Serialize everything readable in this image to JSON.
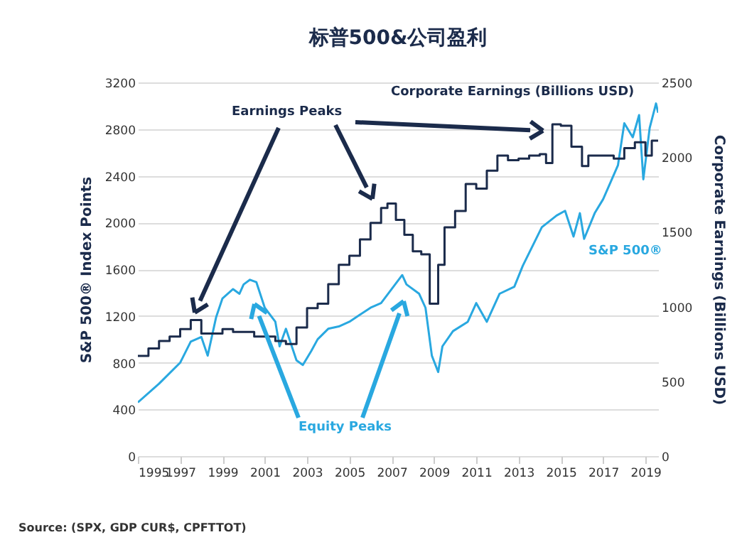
{
  "chart_data": {
    "type": "line",
    "title": "标普500&公司盈利",
    "ylabel": "S&P 500® Index Points",
    "y2label": "Corporate Earnings (Billions USD)",
    "xlim": [
      1995,
      2019.6
    ],
    "xticks": [
      1995,
      1997,
      1999,
      2001,
      2003,
      2005,
      2007,
      2009,
      2011,
      2013,
      2015,
      2017,
      2019
    ],
    "ylim": [
      0,
      3200
    ],
    "yticks": [
      0,
      400,
      800,
      1200,
      1600,
      2000,
      2400,
      2800,
      3200
    ],
    "y2lim": [
      0,
      2500
    ],
    "y2ticks": [
      0,
      500,
      1000,
      1500,
      2000,
      2500
    ],
    "grid": "y",
    "legend": false,
    "series": [
      {
        "name": "S&P 500®",
        "color": "#29a8e0",
        "x": [
          1995,
          1996,
          1997,
          1997.5,
          1998,
          1998.3,
          1998.7,
          1999,
          1999.5,
          1999.8,
          2000,
          2000.3,
          2000.6,
          2001,
          2001.5,
          2001.7,
          2002,
          2002.5,
          2002.8,
          2003.2,
          2003.5,
          2004,
          2004.5,
          2005,
          2005.5,
          2006,
          2006.5,
          2007,
          2007.5,
          2007.7,
          2008.3,
          2008.6,
          2008.9,
          2009.2,
          2009.4,
          2009.9,
          2010.6,
          2011,
          2011.5,
          2012.1,
          2012.8,
          2013.2,
          2014.1,
          2014.8,
          2015.2,
          2015.6,
          2015.9,
          2016.1,
          2016.6,
          2017,
          2017.7,
          2018,
          2018.4,
          2018.7,
          2018.9,
          2019.2,
          2019.5,
          2019.6
        ],
        "values": [
          460,
          620,
          800,
          980,
          1020,
          860,
          1190,
          1350,
          1430,
          1390,
          1470,
          1510,
          1490,
          1270,
          1150,
          940,
          1090,
          820,
          780,
          900,
          1000,
          1090,
          1110,
          1150,
          1210,
          1270,
          1310,
          1430,
          1550,
          1470,
          1390,
          1270,
          860,
          720,
          940,
          1070,
          1150,
          1310,
          1150,
          1390,
          1450,
          1630,
          1960,
          2060,
          2100,
          1880,
          2080,
          1860,
          2080,
          2200,
          2490,
          2850,
          2730,
          2920,
          2370,
          2810,
          3020,
          2940
        ]
      },
      {
        "name": "Corporate Earnings (Billions USD)",
        "type": "step",
        "axis": "y2",
        "color": "#1b2b4b",
        "x": [
          1995,
          1995.5,
          1996,
          1996.5,
          1997,
          1997.5,
          1998,
          1999,
          1999.5,
          2000.5,
          2001.5,
          2002,
          2002.5,
          2003,
          2003.5,
          2004,
          2004.5,
          2005,
          2005.5,
          2006,
          2006.5,
          2006.8,
          2007.2,
          2007.6,
          2008,
          2008.4,
          2008.8,
          2009.2,
          2009.5,
          2010,
          2010.5,
          2011,
          2011.5,
          2012,
          2012.5,
          2013,
          2013.5,
          2014,
          2014.3,
          2014.6,
          2015,
          2015.5,
          2016,
          2016.3,
          2017,
          2017.5,
          2018,
          2018.5,
          2019,
          2019.3,
          2019.6
        ],
        "values": [
          670,
          720,
          770,
          800,
          850,
          910,
          820,
          850,
          830,
          800,
          770,
          750,
          860,
          990,
          1020,
          1150,
          1280,
          1340,
          1450,
          1560,
          1660,
          1690,
          1580,
          1480,
          1370,
          1350,
          1020,
          1280,
          1530,
          1640,
          1820,
          1790,
          1910,
          2010,
          1980,
          1990,
          2010,
          2020,
          1960,
          2220,
          2210,
          2070,
          1940,
          2010,
          2010,
          1990,
          2060,
          2100,
          2010,
          2110,
          2110
        ]
      }
    ],
    "annotations": [
      "Earnings Peaks",
      "Equity Peaks",
      "Source: (SPX, GDP CUR$, CPFTTOT)"
    ]
  }
}
